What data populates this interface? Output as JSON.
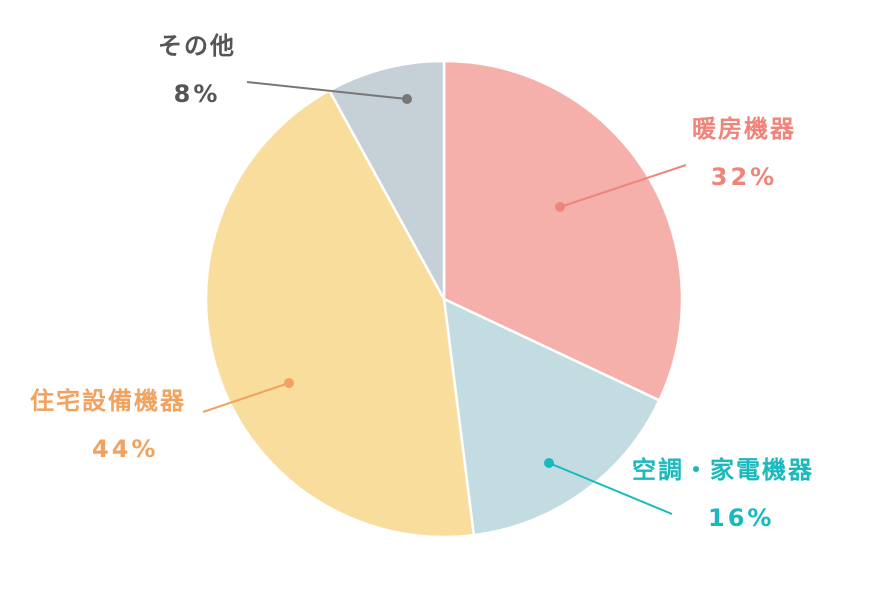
{
  "chart_data": {
    "type": "pie",
    "slices": [
      {
        "label": "暖房機器",
        "value": 32,
        "display": "32%",
        "color": "#f6b0ab",
        "text_color": "#f0847a"
      },
      {
        "label": "空調・家電機器",
        "value": 16,
        "display": "16%",
        "color": "#c2dce2",
        "text_color": "#19b9bd"
      },
      {
        "label": "住宅設備機器",
        "value": 44,
        "display": "44%",
        "color": "#f9dd9c",
        "text_color": "#f1a25f"
      },
      {
        "label": "その他",
        "value": 8,
        "display": "8%",
        "color": "#c6d0d7",
        "text_color": "#555555"
      }
    ],
    "start": "12 o'clock",
    "direction": "clockwise",
    "slice_border": "#ffffff",
    "leader_line_colors": [
      "#f0847a",
      "#19b9bd",
      "#f1a25f",
      "#777777"
    ]
  }
}
